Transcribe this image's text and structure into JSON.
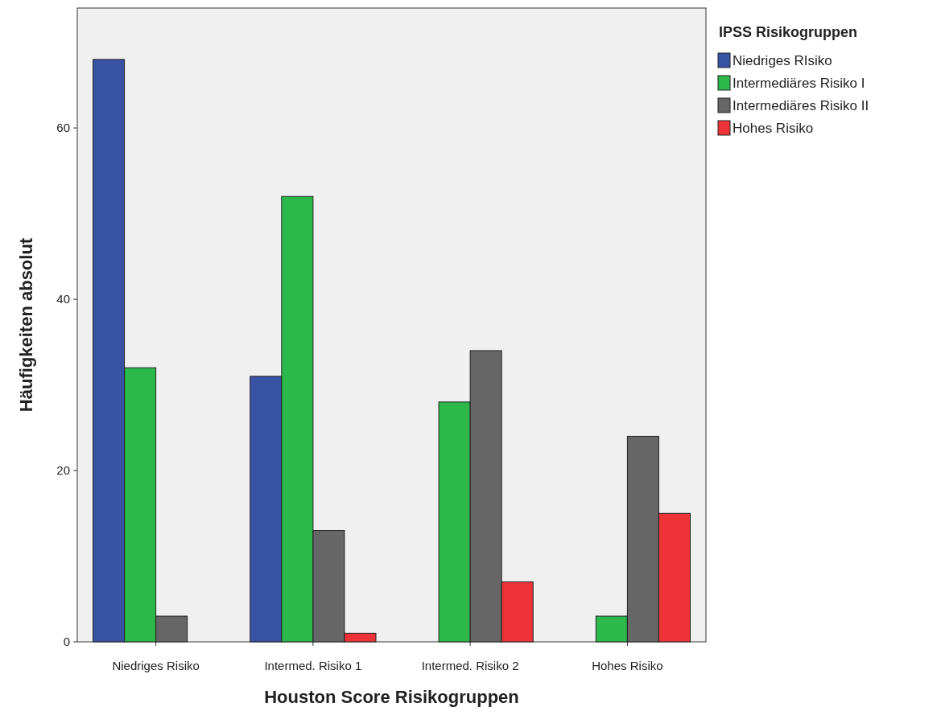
{
  "chart_data": {
    "type": "bar",
    "xlabel": "Houston Score Risikogruppen",
    "ylabel": "Häufigkeiten absolut",
    "legend_title": "IPSS Risikogruppen",
    "categories": [
      "Niedriges Risiko",
      "Intermed. Risiko 1",
      "Intermed. Risiko 2",
      "Hohes Risiko"
    ],
    "series": [
      {
        "name": "Niedriges RIsiko",
        "color": "#3953a4",
        "values": [
          68,
          31,
          null,
          null
        ]
      },
      {
        "name": "Intermediäres Risiko I",
        "color": "#2db84b",
        "values": [
          32,
          52,
          28,
          3
        ]
      },
      {
        "name": "Intermediäres Risiko II",
        "color": "#666666",
        "values": [
          3,
          13,
          34,
          24
        ]
      },
      {
        "name": "Hohes Risiko",
        "color": "#ee3338",
        "values": [
          null,
          1,
          7,
          15
        ]
      }
    ],
    "ylim": [
      0,
      74
    ],
    "yticks": [
      0,
      20,
      40,
      60
    ],
    "grid": false,
    "legend": "top right"
  }
}
